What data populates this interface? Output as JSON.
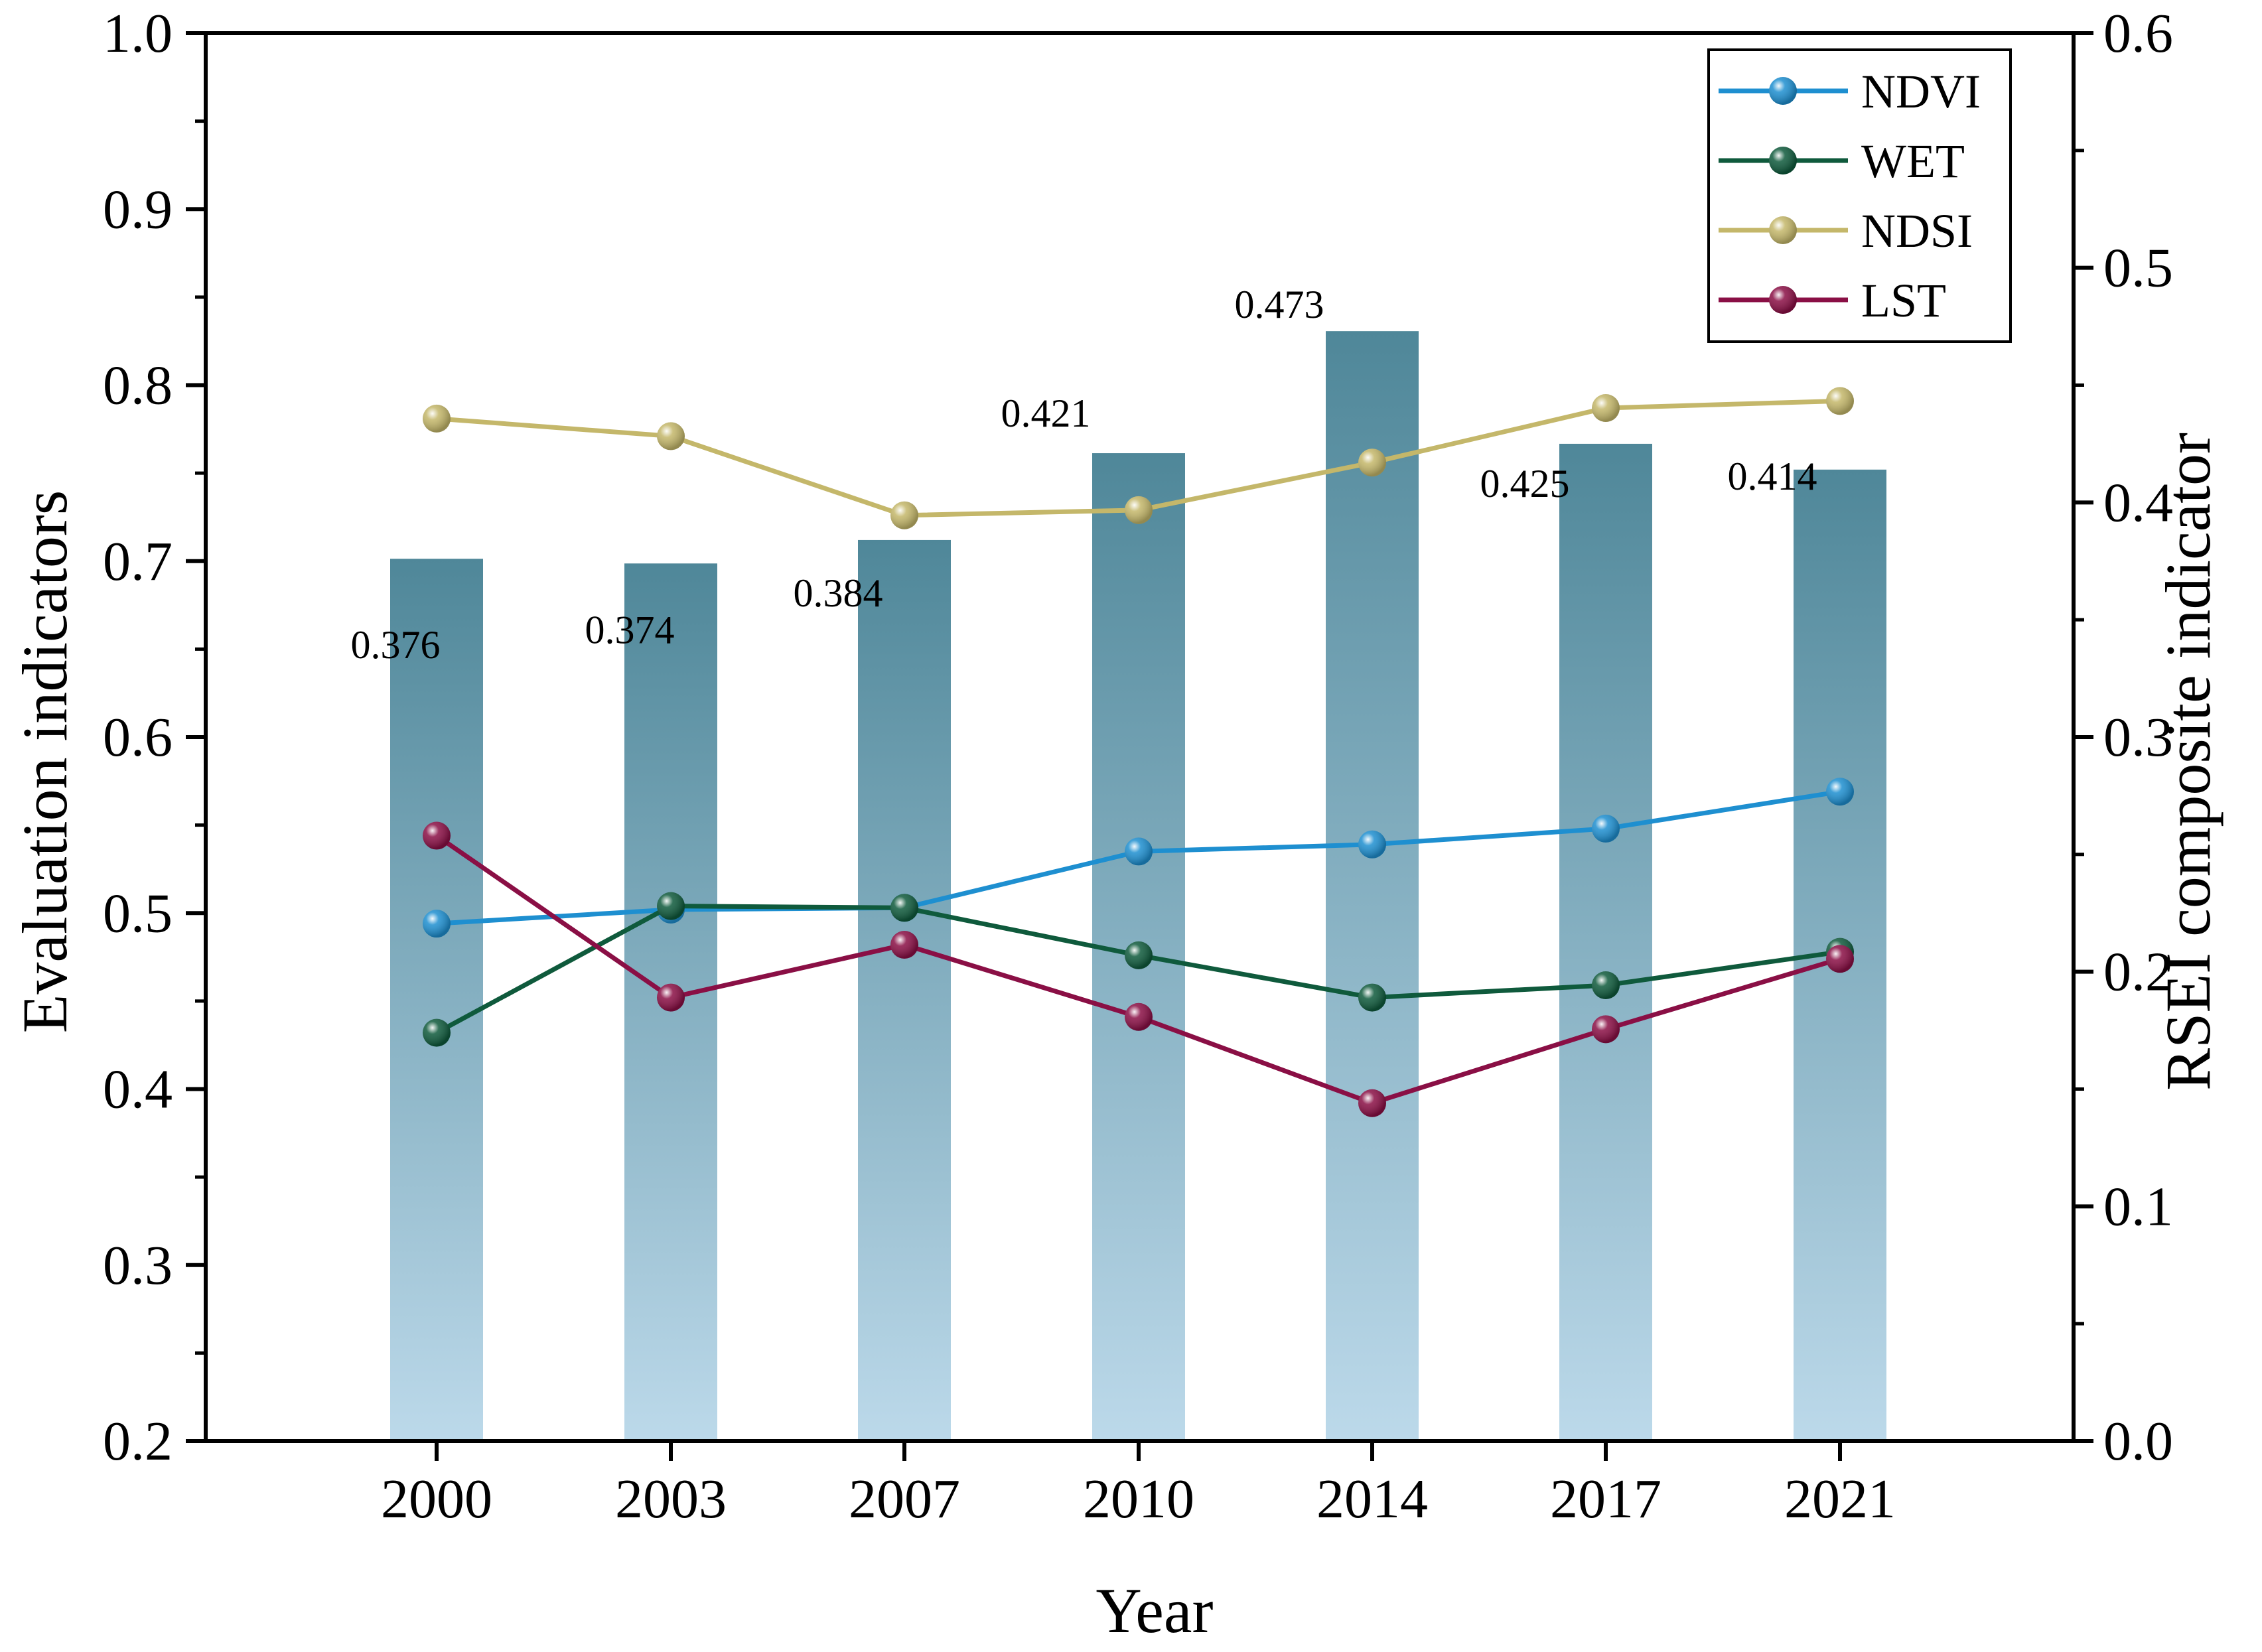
{
  "chart_data": {
    "type": "bar+line",
    "categories": [
      "2000",
      "2003",
      "2007",
      "2010",
      "2014",
      "2017",
      "2021"
    ],
    "xlabel": "Year",
    "ylabel_left": "Evaluation indicators",
    "ylabel_right": "RSEI composite indicator",
    "ylim_left": [
      0.2,
      1.0
    ],
    "ylim_right": [
      0.0,
      0.6
    ],
    "yticks_left": [
      "0.2",
      "0.3",
      "0.4",
      "0.5",
      "0.6",
      "0.7",
      "0.8",
      "0.9",
      "1.0"
    ],
    "yticks_right": [
      "0.0",
      "0.1",
      "0.2",
      "0.3",
      "0.4",
      "0.5",
      "0.6"
    ],
    "bars": {
      "name": "RSEI",
      "axis": "right",
      "values": [
        0.376,
        0.374,
        0.384,
        0.421,
        0.473,
        0.425,
        0.414
      ],
      "labels": [
        "0.376",
        "0.374",
        "0.384",
        "0.421",
        "0.473",
        "0.425",
        "0.414"
      ],
      "color_top": "#4f8799",
      "color_bottom": "#bcd9ea"
    },
    "series": [
      {
        "name": "NDVI",
        "axis": "left",
        "color": "#1e8fd0",
        "values": [
          0.494,
          0.502,
          0.503,
          0.535,
          0.539,
          0.548,
          0.569
        ]
      },
      {
        "name": "WET",
        "axis": "left",
        "color": "#0f5a3c",
        "values": [
          0.432,
          0.504,
          0.503,
          0.476,
          0.452,
          0.459,
          0.478
        ]
      },
      {
        "name": "NDSI",
        "axis": "left",
        "color": "#c4b76a",
        "values": [
          0.781,
          0.771,
          0.726,
          0.729,
          0.756,
          0.787,
          0.791
        ]
      },
      {
        "name": "LST",
        "axis": "left",
        "color": "#8a0f45",
        "values": [
          0.544,
          0.452,
          0.482,
          0.441,
          0.392,
          0.434,
          0.474
        ]
      }
    ],
    "legend_position": "top-right"
  }
}
